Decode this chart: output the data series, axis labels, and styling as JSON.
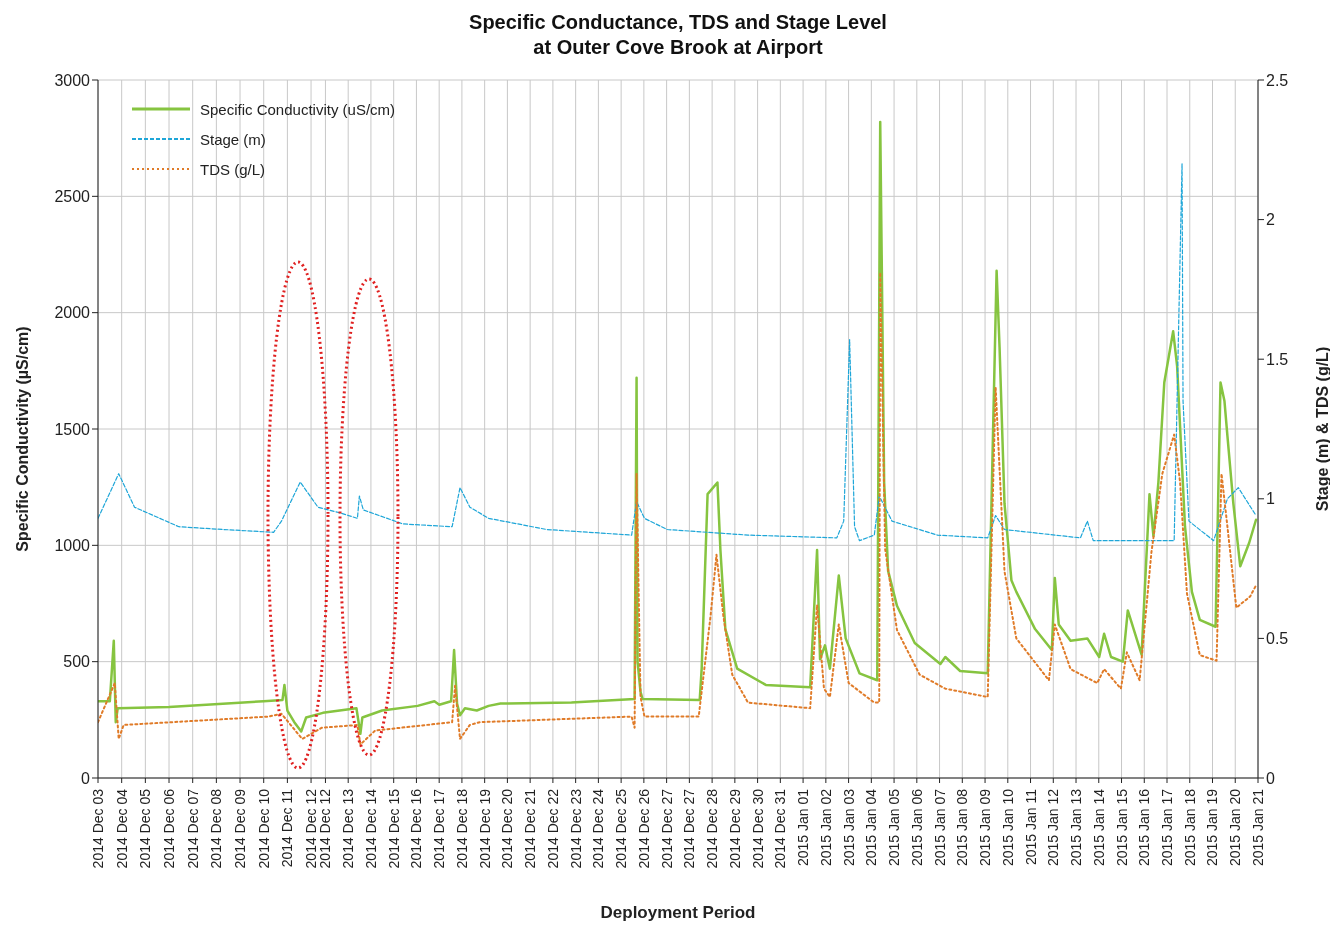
{
  "chart_data": {
    "type": "line",
    "title": "Specific Conductance, TDS and Stage Level\nat Outer Cove Brook at Airport",
    "xlabel": "Deployment Period",
    "ylabel": "Specific Conductivity  (µS/cm)",
    "y2label": "Stage (m) & TDS (g/L)",
    "xlim": [
      "2014-12-03T00:00",
      "2015-01-21T00:00"
    ],
    "xticks": [
      {
        "value": "2014-12-03T00:00",
        "label": "2014 Dec 03"
      },
      {
        "value": "2014-12-04T00:00",
        "label": "2014 Dec 04"
      },
      {
        "value": "2014-12-05T00:00",
        "label": "2014 Dec 05"
      },
      {
        "value": "2014-12-06T00:00",
        "label": "2014 Dec 06"
      },
      {
        "value": "2014-12-07T00:00",
        "label": "2014 Dec 07"
      },
      {
        "value": "2014-12-08T00:00",
        "label": "2014 Dec 08"
      },
      {
        "value": "2014-12-09T00:00",
        "label": "2014 Dec 09"
      },
      {
        "value": "2014-12-10T00:00",
        "label": "2014 Dec 10"
      },
      {
        "value": "2014-12-11T00:00",
        "label": "2014 Dec 11"
      },
      {
        "value": "2014-12-12T00:00",
        "label": "2014 Dec 12"
      },
      {
        "value": "2014-12-12T14:35",
        "label": "2014 Dec 12"
      },
      {
        "value": "2014-12-13T13:39",
        "label": "2014 Dec 13"
      },
      {
        "value": "2014-12-14T12:42",
        "label": "2014 Dec 14"
      },
      {
        "value": "2014-12-15T11:46",
        "label": "2014 Dec 15"
      },
      {
        "value": "2014-12-16T10:49",
        "label": "2014 Dec 16"
      },
      {
        "value": "2014-12-17T09:53",
        "label": "2014 Dec 17"
      },
      {
        "value": "2014-12-18T08:56",
        "label": "2014 Dec 18"
      },
      {
        "value": "2014-12-19T08:00",
        "label": "2014 Dec 19"
      },
      {
        "value": "2014-12-20T07:03",
        "label": "2014 Dec 20"
      },
      {
        "value": "2014-12-21T06:07",
        "label": "2014 Dec 21"
      },
      {
        "value": "2014-12-22T05:10",
        "label": "2014 Dec 22"
      },
      {
        "value": "2014-12-23T04:14",
        "label": "2014 Dec 23"
      },
      {
        "value": "2014-12-24T03:17",
        "label": "2014 Dec 24"
      },
      {
        "value": "2014-12-25T02:21",
        "label": "2014 Dec 25"
      },
      {
        "value": "2014-12-26T01:24",
        "label": "2014 Dec 26"
      },
      {
        "value": "2014-12-27T00:28",
        "label": "2014 Dec 27"
      },
      {
        "value": "2014-12-27T23:31",
        "label": "2014 Dec 27"
      },
      {
        "value": "2014-12-28T22:35",
        "label": "2014 Dec 28"
      },
      {
        "value": "2014-12-29T21:38",
        "label": "2014 Dec 29"
      },
      {
        "value": "2014-12-30T20:42",
        "label": "2014 Dec 30"
      },
      {
        "value": "2014-12-31T19:45",
        "label": "2014 Dec 31"
      },
      {
        "value": "2015-01-01T18:49",
        "label": "2015 Jan 01"
      },
      {
        "value": "2015-01-02T17:53",
        "label": "2015 Jan 02"
      },
      {
        "value": "2015-01-03T16:56",
        "label": "2015 Jan 03"
      },
      {
        "value": "2015-01-04T16:00",
        "label": "2015 Jan 04"
      },
      {
        "value": "2015-01-05T15:03",
        "label": "2015 Jan 05"
      },
      {
        "value": "2015-01-06T14:07",
        "label": "2015 Jan 06"
      },
      {
        "value": "2015-01-07T13:10",
        "label": "2015 Jan 07"
      },
      {
        "value": "2015-01-08T12:14",
        "label": "2015 Jan 08"
      },
      {
        "value": "2015-01-09T11:17",
        "label": "2015 Jan 09"
      },
      {
        "value": "2015-01-10T10:21",
        "label": "2015 Jan 10"
      },
      {
        "value": "2015-01-11T09:24",
        "label": "2015 Jan 11"
      },
      {
        "value": "2015-01-12T08:28",
        "label": "2015 Jan 12"
      },
      {
        "value": "2015-01-13T07:31",
        "label": "2015 Jan 13"
      },
      {
        "value": "2015-01-14T06:35",
        "label": "2015 Jan 14"
      },
      {
        "value": "2015-01-15T05:38",
        "label": "2015 Jan 15"
      },
      {
        "value": "2015-01-16T04:42",
        "label": "2015 Jan 16"
      },
      {
        "value": "2015-01-17T03:45",
        "label": "2015 Jan 17"
      },
      {
        "value": "2015-01-18T02:49",
        "label": "2015 Jan 18"
      },
      {
        "value": "2015-01-19T01:52",
        "label": "2015 Jan 19"
      },
      {
        "value": "2015-01-20T00:56",
        "label": "2015 Jan 20"
      },
      {
        "value": "2015-01-21T00:00",
        "label": "2015 Jan 21"
      }
    ],
    "ylim": [
      0,
      3000
    ],
    "yticks": [
      0,
      500,
      1000,
      1500,
      2000,
      2500,
      3000
    ],
    "y2lim": [
      0,
      2.5
    ],
    "y2ticks": [
      0,
      0.5,
      1,
      1.5,
      2,
      2.5
    ],
    "grid": true,
    "legend": "top left",
    "series": [
      {
        "name": "Specific Conductivity (uS/cm)",
        "color": "#86c440",
        "line_style": "solid",
        "x": [
          "2014-12-03T00:00",
          "2014-12-03T12:00",
          "2014-12-03T16:00",
          "2014-12-03T18:00",
          "2014-12-03T20:00",
          "2014-12-06T00:00",
          "2014-12-10T00:00",
          "2014-12-10T19:00",
          "2014-12-10T21:00",
          "2014-12-11T00:00",
          "2014-12-11T07:00",
          "2014-12-11T14:00",
          "2014-12-11T19:00",
          "2014-12-12T12:00",
          "2014-12-13T22:00",
          "2014-12-14T02:00",
          "2014-12-14T04:00",
          "2014-12-15T00:00",
          "2014-12-16T12:00",
          "2014-12-17T05:00",
          "2014-12-17T10:00",
          "2014-12-17T22:00",
          "2014-12-18T01:00",
          "2014-12-18T04:00",
          "2014-12-18T07:00",
          "2014-12-18T12:00",
          "2014-12-19T00:00",
          "2014-12-19T12:00",
          "2014-12-20T00:00",
          "2014-12-23T00:00",
          "2014-12-25T16:00",
          "2014-12-25T18:00",
          "2014-12-25T19:00",
          "2014-12-25T22:00",
          "2014-12-26T00:00",
          "2014-12-28T10:00",
          "2014-12-28T12:00",
          "2014-12-28T18:00",
          "2014-12-29T04:00",
          "2014-12-29T07:00",
          "2014-12-29T12:00",
          "2014-12-30T00:00",
          "2014-12-31T05:00",
          "2015-01-02T02:00",
          "2015-01-02T09:00",
          "2015-01-02T12:00",
          "2015-01-02T17:00",
          "2015-01-02T22:00",
          "2015-01-03T07:00",
          "2015-01-03T14:00",
          "2015-01-04T04:00",
          "2015-01-04T22:00",
          "2015-01-05T01:00",
          "2015-01-05T05:00",
          "2015-01-05T09:00",
          "2015-01-05T18:00",
          "2015-01-06T12:00",
          "2015-01-07T14:00",
          "2015-01-07T19:00",
          "2015-01-08T10:00",
          "2015-01-09T14:00",
          "2015-01-09T23:00",
          "2015-01-10T02:00",
          "2015-01-10T07:00",
          "2015-01-10T14:00",
          "2015-01-10T19:00",
          "2015-01-11T14:00",
          "2015-01-12T07:00",
          "2015-01-12T10:00",
          "2015-01-12T14:00",
          "2015-01-13T02:00",
          "2015-01-13T19:00",
          "2015-01-14T07:00",
          "2015-01-14T12:00",
          "2015-01-14T19:00",
          "2015-01-15T07:00",
          "2015-01-15T12:00",
          "2015-01-16T02:00",
          "2015-01-16T10:00",
          "2015-01-16T14:00",
          "2015-01-16T19:00",
          "2015-01-17T01:00",
          "2015-01-17T10:00",
          "2015-01-17T14:00",
          "2015-01-17T22:00",
          "2015-01-18T05:00",
          "2015-01-18T13:00",
          "2015-01-19T05:00",
          "2015-01-19T10:00",
          "2015-01-19T14:00",
          "2015-01-19T17:00",
          "2015-01-19T23:00",
          "2015-01-20T06:00",
          "2015-01-20T15:00",
          "2015-01-20T22:00"
        ],
        "values": [
          330,
          330,
          590,
          240,
          300,
          305,
          330,
          335,
          400,
          290,
          240,
          200,
          260,
          280,
          300,
          190,
          260,
          290,
          310,
          330,
          315,
          330,
          550,
          320,
          270,
          300,
          290,
          310,
          320,
          325,
          340,
          1720,
          500,
          370,
          340,
          335,
          470,
          1220,
          1270,
          980,
          640,
          470,
          400,
          390,
          980,
          510,
          570,
          470,
          870,
          600,
          450,
          420,
          2820,
          1270,
          890,
          740,
          580,
          490,
          520,
          460,
          450,
          2180,
          1850,
          1180,
          850,
          800,
          640,
          550,
          860,
          660,
          590,
          600,
          520,
          620,
          520,
          500,
          720,
          530,
          1220,
          1040,
          1270,
          1700,
          1920,
          1770,
          1080,
          800,
          680,
          650,
          1700,
          1620,
          1470,
          1180,
          910,
          1010,
          1110
        ]
      },
      {
        "name": "Stage (m)",
        "color": "#1ea6d8",
        "line_style": "dashed",
        "axis": "y2",
        "x": [
          "2014-12-03T00:00",
          "2014-12-03T21:00",
          "2014-12-04T13:00",
          "2014-12-06T10:00",
          "2014-12-08T07:00",
          "2014-12-10T10:00",
          "2014-12-10T18:00",
          "2014-12-11T13:00",
          "2014-12-12T07:00",
          "2014-12-13T05:00",
          "2014-12-13T23:00",
          "2014-12-14T01:00",
          "2014-12-14T05:00",
          "2014-12-15T21:00",
          "2014-12-17T23:00",
          "2014-12-18T07:00",
          "2014-12-18T17:00",
          "2014-12-19T12:00",
          "2014-12-21T23:00",
          "2014-12-25T13:00",
          "2014-12-25T18:00",
          "2014-12-26T02:00",
          "2014-12-27T01:00",
          "2014-12-30T11:00",
          "2015-01-03T05:00",
          "2015-01-03T12:00",
          "2015-01-03T18:00",
          "2015-01-03T23:00",
          "2015-01-04T04:00",
          "2015-01-04T19:00",
          "2015-01-05T00:00",
          "2015-01-05T13:00",
          "2015-01-07T11:00",
          "2015-01-09T14:00",
          "2015-01-09T22:00",
          "2015-01-10T07:00",
          "2015-01-13T12:00",
          "2015-01-13T19:00",
          "2015-01-14T01:00",
          "2015-01-17T11:00",
          "2015-01-17T19:00",
          "2015-01-17T20:00",
          "2015-01-18T02:00",
          "2015-01-19T03:00",
          "2015-01-19T17:00",
          "2015-01-20T04:00",
          "2015-01-20T22:00"
        ],
        "values": [
          0.93,
          1.09,
          0.97,
          0.9,
          0.89,
          0.88,
          0.92,
          1.06,
          0.97,
          0.95,
          0.93,
          1.01,
          0.96,
          0.91,
          0.9,
          1.04,
          0.97,
          0.93,
          0.89,
          0.87,
          0.99,
          0.93,
          0.89,
          0.87,
          0.86,
          0.92,
          1.57,
          0.9,
          0.85,
          0.87,
          1.01,
          0.92,
          0.87,
          0.86,
          0.94,
          0.89,
          0.86,
          0.92,
          0.85,
          0.85,
          2.2,
          1.35,
          0.92,
          0.85,
          1.0,
          1.04,
          0.94
        ]
      },
      {
        "name": "TDS (g/L)",
        "color": "#e07b28",
        "line_style": "dotted",
        "axis": "y2",
        "x": [
          "2014-12-03T00:00",
          "2014-12-03T17:00",
          "2014-12-03T21:00",
          "2014-12-04T02:00",
          "2014-12-10T05:00",
          "2014-12-10T18:00",
          "2014-12-11T15:00",
          "2014-12-12T11:00",
          "2014-12-13T23:00",
          "2014-12-14T02:00",
          "2014-12-14T17:00",
          "2014-12-17T23:00",
          "2014-12-18T02:00",
          "2014-12-18T07:00",
          "2014-12-18T17:00",
          "2014-12-19T03:00",
          "2014-12-25T13:00",
          "2014-12-25T16:00",
          "2014-12-25T18:00",
          "2014-12-25T22:00",
          "2014-12-26T02:00",
          "2014-12-28T09:00",
          "2014-12-28T21:00",
          "2014-12-29T03:00",
          "2014-12-29T10:00",
          "2014-12-29T19:00",
          "2014-12-30T11:00",
          "2015-01-02T02:00",
          "2015-01-02T09:00",
          "2015-01-02T16:00",
          "2015-01-02T22:00",
          "2015-01-03T07:00",
          "2015-01-03T17:00",
          "2015-01-04T19:00",
          "2015-01-05T00:00",
          "2015-01-05T01:00",
          "2015-01-05T06:00",
          "2015-01-05T18:00",
          "2015-01-06T17:00",
          "2015-01-07T19:00",
          "2015-01-09T14:00",
          "2015-01-09T22:00",
          "2015-01-10T07:00",
          "2015-01-10T19:00",
          "2015-01-12T04:00",
          "2015-01-12T10:00",
          "2015-01-13T02:00",
          "2015-01-14T05:00",
          "2015-01-14T12:00",
          "2015-01-15T05:00",
          "2015-01-15T11:00",
          "2015-01-16T00:00",
          "2015-01-16T12:00",
          "2015-01-16T23:00",
          "2015-01-17T11:00",
          "2015-01-17T17:00",
          "2015-01-18T00:00",
          "2015-01-18T13:00",
          "2015-01-19T06:00",
          "2015-01-19T11:00",
          "2015-01-19T17:00",
          "2015-01-20T02:00",
          "2015-01-20T16:00",
          "2015-01-20T22:00"
        ],
        "values": [
          0.2,
          0.34,
          0.14,
          0.19,
          0.22,
          0.23,
          0.14,
          0.18,
          0.19,
          0.12,
          0.17,
          0.2,
          0.33,
          0.14,
          0.19,
          0.2,
          0.22,
          0.18,
          1.09,
          0.29,
          0.22,
          0.22,
          0.58,
          0.8,
          0.58,
          0.37,
          0.27,
          0.25,
          0.62,
          0.32,
          0.29,
          0.55,
          0.34,
          0.27,
          0.27,
          1.81,
          0.82,
          0.53,
          0.37,
          0.32,
          0.29,
          1.4,
          0.74,
          0.5,
          0.35,
          0.55,
          0.39,
          0.34,
          0.39,
          0.32,
          0.45,
          0.35,
          0.81,
          1.09,
          1.23,
          1.06,
          0.66,
          0.44,
          0.42,
          1.09,
          0.9,
          0.61,
          0.65,
          0.69
        ]
      }
    ]
  }
}
